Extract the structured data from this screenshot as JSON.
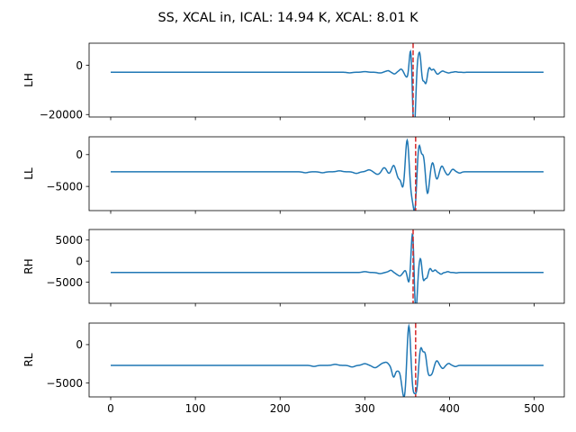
{
  "chart_data": {
    "type": "line",
    "title": "SS, XCAL in, ICAL: 14.94 K, XCAL: 8.01 K",
    "line_color": "#1f77b4",
    "marker_color": "#d62728",
    "x_ticks": [
      "0",
      "100",
      "200",
      "300",
      "400",
      "500"
    ],
    "xlim": [
      -25.5,
      535.5
    ],
    "panels": [
      {
        "ylabel": "LH",
        "ylim": [
          -21000,
          9000
        ],
        "y_ticks": [
          {
            "v": 0,
            "label": "0"
          },
          {
            "v": -20000,
            "label": "−20000"
          }
        ],
        "baseline": -2800,
        "peak_x": 355,
        "marker_x": 357,
        "wavelet": [
          [
            -27,
            300
          ],
          [
            -20,
            -400
          ],
          [
            -12,
            600
          ],
          [
            -7,
            -1200
          ],
          [
            -4,
            -2500
          ],
          [
            -2,
            4000
          ],
          [
            0,
            10300
          ],
          [
            2,
            -16000
          ],
          [
            4,
            -15000
          ],
          [
            7,
            4500
          ],
          [
            10,
            7500
          ],
          [
            13,
            -3800
          ],
          [
            17,
            -4500
          ],
          [
            21,
            2000
          ],
          [
            26,
            1200
          ],
          [
            31,
            -800
          ],
          [
            37,
            500
          ],
          [
            44,
            -300
          ],
          [
            52,
            200
          ],
          [
            62,
            -100
          ]
        ],
        "wavelet_width": 1.6,
        "ripple": [
          [
            282,
            -250
          ],
          [
            300,
            250
          ],
          [
            318,
            -300
          ],
          [
            326,
            400
          ],
          [
            335,
            -350
          ],
          [
            342,
            700
          ]
        ]
      },
      {
        "ylabel": "LL",
        "ylim": [
          -8800,
          2800
        ],
        "y_ticks": [
          {
            "v": 0,
            "label": "0"
          },
          {
            "v": -5000,
            "label": "−5000"
          }
        ],
        "baseline": -2700,
        "peak_x": 352,
        "marker_x": 360,
        "wavelet": [
          [
            -30,
            350
          ],
          [
            -24,
            -500
          ],
          [
            -18,
            1000
          ],
          [
            -12,
            -1000
          ],
          [
            -7,
            -2500
          ],
          [
            -2,
            5200
          ],
          [
            3,
            -3000
          ],
          [
            7,
            -5800
          ],
          [
            12,
            4200
          ],
          [
            17,
            2500
          ],
          [
            22,
            -3500
          ],
          [
            28,
            1500
          ],
          [
            33,
            -1200
          ],
          [
            39,
            900
          ],
          [
            46,
            -500
          ],
          [
            52,
            400
          ],
          [
            60,
            -200
          ]
        ],
        "wavelet_width": 2.0,
        "ripple": [
          [
            230,
            -150
          ],
          [
            250,
            -150
          ],
          [
            270,
            150
          ],
          [
            290,
            -250
          ],
          [
            305,
            300
          ],
          [
            315,
            -400
          ],
          [
            325,
            450
          ]
        ]
      },
      {
        "ylabel": "RH",
        "ylim": [
          -10000,
          7500
        ],
        "y_ticks": [
          {
            "v": 5000,
            "label": "5000"
          },
          {
            "v": 0,
            "label": "0"
          },
          {
            "v": -5000,
            "label": "−5000"
          }
        ],
        "baseline": -2700,
        "peak_x": 356,
        "marker_x": 357,
        "wavelet": [
          [
            -25,
            250
          ],
          [
            -14,
            -300
          ],
          [
            -8,
            600
          ],
          [
            -5,
            -1000
          ],
          [
            -3,
            -2500
          ],
          [
            -1,
            3500
          ],
          [
            1,
            9500
          ],
          [
            3,
            -7000
          ],
          [
            5,
            -6000
          ],
          [
            7,
            1500
          ],
          [
            10,
            3300
          ],
          [
            13,
            -2200
          ],
          [
            17,
            -1300
          ],
          [
            21,
            1000
          ],
          [
            27,
            600
          ],
          [
            34,
            -400
          ],
          [
            42,
            200
          ],
          [
            52,
            -100
          ]
        ],
        "wavelet_width": 1.6,
        "ripple": [
          [
            300,
            200
          ],
          [
            318,
            -250
          ],
          [
            330,
            300
          ],
          [
            340,
            -600
          ]
        ]
      },
      {
        "ylabel": "RL",
        "ylim": [
          -6800,
          2800
        ],
        "y_ticks": [
          {
            "v": 0,
            "label": "0"
          },
          {
            "v": -5000,
            "label": "−5000"
          }
        ],
        "baseline": -2700,
        "peak_x": 352,
        "marker_x": 360,
        "wavelet": [
          [
            -26,
            250
          ],
          [
            -18,
            -1500
          ],
          [
            -13,
            -600
          ],
          [
            -8,
            -1800
          ],
          [
            -5,
            -3500
          ],
          [
            0,
            5400
          ],
          [
            5,
            -3000
          ],
          [
            9,
            -3100
          ],
          [
            14,
            2300
          ],
          [
            19,
            1700
          ],
          [
            23,
            -1200
          ],
          [
            27,
            -1000
          ],
          [
            33,
            600
          ],
          [
            40,
            -400
          ],
          [
            47,
            250
          ],
          [
            55,
            -150
          ]
        ],
        "wavelet_width": 2.0,
        "ripple": [
          [
            240,
            -130
          ],
          [
            265,
            130
          ],
          [
            285,
            -200
          ],
          [
            300,
            220
          ],
          [
            312,
            -300
          ],
          [
            322,
            300
          ]
        ]
      }
    ]
  }
}
